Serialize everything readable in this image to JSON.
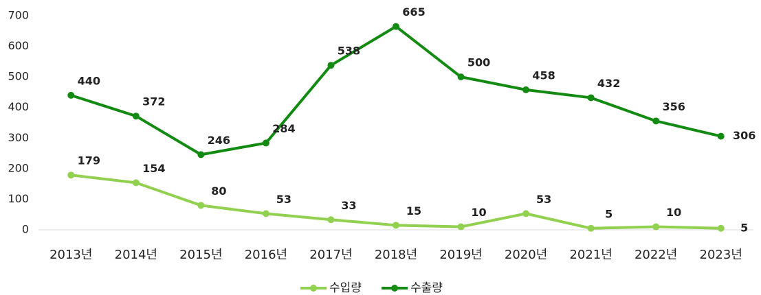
{
  "chart_data": {
    "type": "line",
    "categories": [
      "2013년",
      "2014년",
      "2015년",
      "2016년",
      "2017년",
      "2018년",
      "2019년",
      "2020년",
      "2021년",
      "2022년",
      "2023년"
    ],
    "series": [
      {
        "name": "수입량",
        "color": "#92d050",
        "values": [
          179,
          154,
          80,
          53,
          33,
          15,
          10,
          53,
          5,
          10,
          5
        ]
      },
      {
        "name": "수출량",
        "color": "#138a12",
        "values": [
          440,
          372,
          246,
          284,
          538,
          665,
          500,
          458,
          432,
          356,
          306
        ]
      }
    ],
    "ylim": [
      0,
      700
    ],
    "yticks": [
      0,
      100,
      200,
      300,
      400,
      500,
      600,
      700
    ],
    "grid": false,
    "legend": "bottom"
  }
}
